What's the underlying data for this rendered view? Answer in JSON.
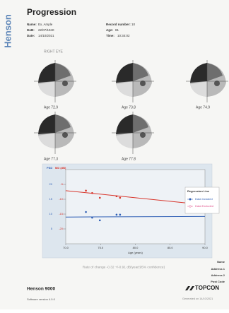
{
  "sidebar": "Henson",
  "header": {
    "title": "Progression",
    "left": [
      {
        "label": "Name:",
        "value": "Ex, Ample"
      },
      {
        "label": "DoB:",
        "value": "22/07/1940"
      },
      {
        "label": "Date:",
        "value": "14/10/2021"
      }
    ],
    "right": [
      {
        "label": "Record number:",
        "value": "10"
      },
      {
        "label": "Age:",
        "value": "81"
      },
      {
        "label": "Time:",
        "value": "10:34:02"
      }
    ]
  },
  "eye": "RIGHT EYE",
  "visual_fields": [
    "Age 72.9",
    "Age 73.8",
    "Age 74.9",
    "Age 77.3",
    "Age 77.8"
  ],
  "chart_data": {
    "type": "scatter",
    "xlabel": "Age (years)",
    "x": [
      72.9,
      73.8,
      74.9,
      77.3,
      77.8
    ],
    "xlim": [
      70,
      90
    ],
    "xticks": [
      {
        "value": 70,
        "label": "70.0"
      },
      {
        "value": 75,
        "label": "75.0"
      },
      {
        "value": 80,
        "label": "80.0"
      },
      {
        "value": 85,
        "label": "85.0"
      },
      {
        "value": 90,
        "label": "90.0"
      }
    ],
    "ylim": [
      0,
      25
    ],
    "yticks": [
      5,
      10,
      15,
      20
    ],
    "y2lim": [
      -25,
      0
    ],
    "y2ticks": [
      -20,
      -15,
      -10,
      -5
    ],
    "series": [
      {
        "name": "PSD",
        "color": "#2f5fb5",
        "values": [
          10.7,
          8.8,
          7.9,
          9.8,
          9.8
        ],
        "trend": [
          9.0,
          9.2
        ]
      },
      {
        "name": "MD (dB)",
        "color": "#d8352b",
        "axis": "y2",
        "values": [
          -7.1,
          -7.9,
          -9.5,
          -9.0,
          -9.5
        ],
        "trend": [
          -7.1,
          -11.9
        ]
      }
    ],
    "legend": {
      "title": "Regression Line",
      "items": [
        {
          "name": "Data Included",
          "color": "#2f5fb5"
        },
        {
          "name": "Data Excluded",
          "color": "#e0508a"
        }
      ]
    }
  },
  "rate_of_change": "Rate of change -0.32 +/-0.91 dB/year(95% confidence)",
  "address": [
    "Name",
    "Address 1",
    "Address 2",
    "Post Code"
  ],
  "footer": {
    "product": "Henson 9000",
    "software": "Software version 4.0.0",
    "brand": "TOPCON",
    "generated": "Generated on 14/10/2021"
  }
}
